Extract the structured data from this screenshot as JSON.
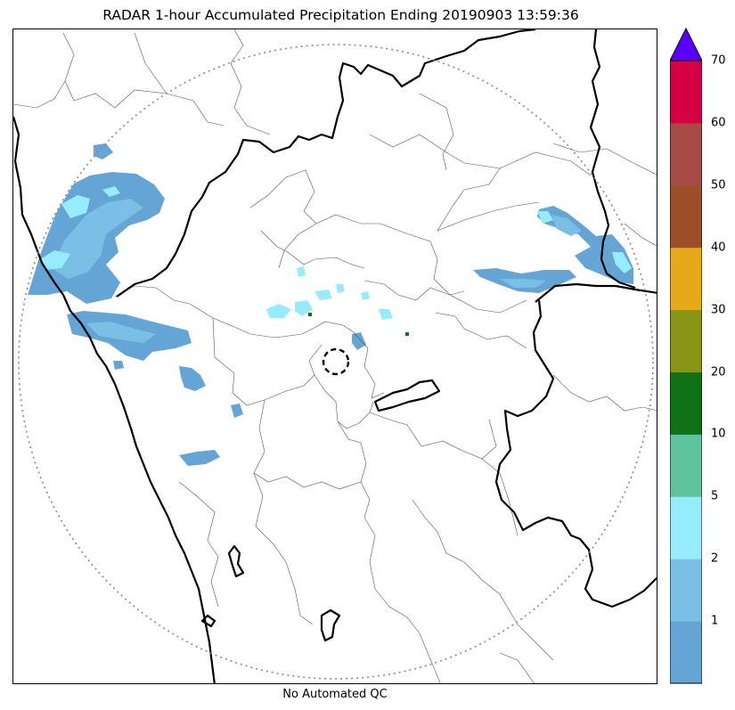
{
  "title": "RADAR 1-hour Accumulated Precipitation Ending 20190903 13:59:36",
  "footer": "No Automated QC",
  "colorbar": {
    "extend_arrow_color": "#5a00ff",
    "bins": [
      {
        "color": "#64a5d6"
      },
      {
        "color": "#7abfe6"
      },
      {
        "color": "#96ecfd"
      },
      {
        "color": "#5dc49b"
      },
      {
        "color": "#0f7216"
      },
      {
        "color": "#8a9417"
      },
      {
        "color": "#e8a918"
      },
      {
        "color": "#9c4e27"
      },
      {
        "color": "#a84a46"
      },
      {
        "color": "#d50044"
      }
    ],
    "tick_labels": [
      "1",
      "2",
      "5",
      "10",
      "20",
      "30",
      "40",
      "50",
      "60",
      "70"
    ]
  },
  "map_colors": {
    "precip_light": "#64a5d6",
    "precip_mid": "#7abfe6",
    "precip_cyan": "#96ecfd",
    "precip_green": "#0f7216",
    "coast_and_border": "#000000",
    "district_lines": "#555555",
    "range_ring": "#888888"
  }
}
